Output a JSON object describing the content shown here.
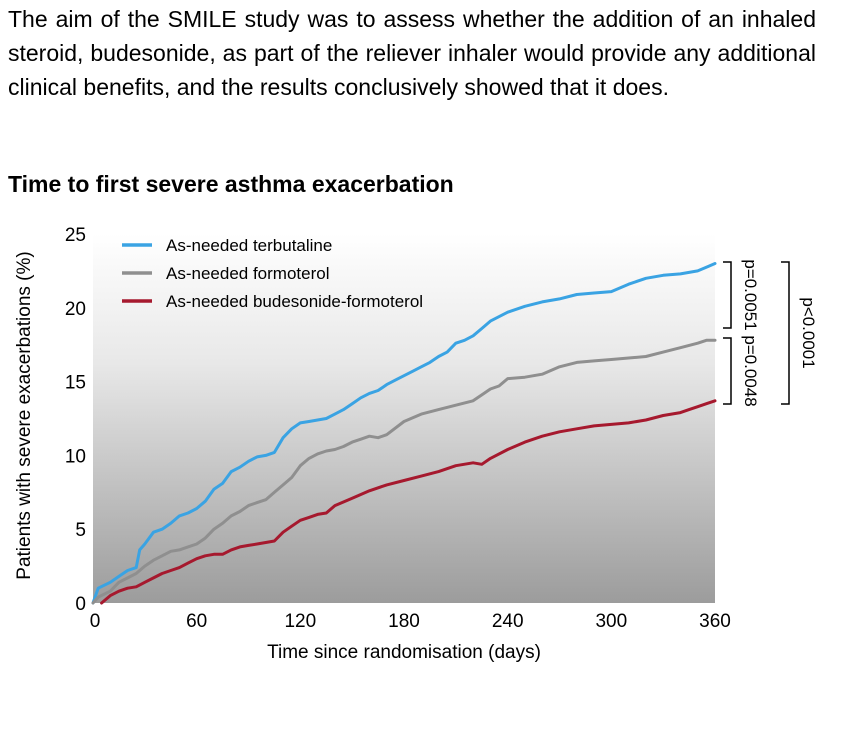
{
  "intro_text": "The aim of the SMILE study was to assess whether the addition of an inhaled steroid, budesonide, as part of the reliever inhaler would provide any additional clinical benefits, and the results conclusively showed that it does.",
  "chart_data": {
    "type": "line",
    "title": "Time to first severe asthma exacerbation",
    "xlabel": "Time since randomisation (days)",
    "ylabel": "Patients with severe exacerbations (%)",
    "xlim": [
      0,
      360
    ],
    "ylim": [
      0,
      25
    ],
    "xticks": [
      "0",
      "60",
      "120",
      "180",
      "240",
      "300",
      "360"
    ],
    "yticks": [
      "0",
      "5",
      "10",
      "15",
      "20",
      "25"
    ],
    "legend_position": "top-left",
    "series": [
      {
        "name": "As-needed terbutaline",
        "color": "#3aa3e3",
        "x": [
          0,
          3,
          10,
          15,
          20,
          25,
          27,
          30,
          35,
          40,
          45,
          50,
          55,
          60,
          65,
          70,
          75,
          80,
          85,
          90,
          95,
          100,
          105,
          110,
          115,
          120,
          125,
          130,
          135,
          140,
          145,
          150,
          155,
          160,
          165,
          170,
          175,
          180,
          185,
          190,
          195,
          200,
          205,
          210,
          215,
          220,
          225,
          230,
          240,
          250,
          260,
          270,
          280,
          290,
          300,
          310,
          320,
          330,
          340,
          350,
          356,
          360
        ],
        "y": [
          0,
          1.0,
          1.4,
          1.8,
          2.2,
          2.4,
          3.6,
          4.0,
          4.8,
          5.0,
          5.4,
          5.9,
          6.1,
          6.4,
          6.9,
          7.7,
          8.1,
          8.9,
          9.2,
          9.6,
          9.9,
          10.0,
          10.2,
          11.2,
          11.8,
          12.2,
          12.3,
          12.4,
          12.5,
          12.8,
          13.1,
          13.5,
          13.9,
          14.2,
          14.4,
          14.8,
          15.1,
          15.4,
          15.7,
          16.0,
          16.3,
          16.7,
          17.0,
          17.6,
          17.8,
          18.1,
          18.6,
          19.1,
          19.7,
          20.1,
          20.4,
          20.6,
          20.9,
          21.0,
          21.1,
          21.6,
          22.0,
          22.2,
          22.3,
          22.5,
          22.8,
          23.0
        ]
      },
      {
        "name": "As-needed formoterol",
        "color": "#8f8f8f",
        "x": [
          0,
          3,
          10,
          15,
          20,
          25,
          30,
          35,
          40,
          45,
          50,
          55,
          60,
          65,
          70,
          75,
          80,
          85,
          90,
          95,
          100,
          105,
          110,
          115,
          120,
          125,
          130,
          135,
          140,
          145,
          150,
          155,
          160,
          165,
          170,
          180,
          190,
          200,
          210,
          220,
          225,
          230,
          235,
          240,
          250,
          260,
          270,
          280,
          290,
          300,
          310,
          320,
          330,
          340,
          350,
          355,
          360
        ],
        "y": [
          0,
          0.4,
          0.8,
          1.4,
          1.7,
          2.0,
          2.5,
          2.9,
          3.2,
          3.5,
          3.6,
          3.8,
          4.0,
          4.4,
          5.0,
          5.4,
          5.9,
          6.2,
          6.6,
          6.8,
          7.0,
          7.5,
          8.0,
          8.5,
          9.3,
          9.8,
          10.1,
          10.3,
          10.4,
          10.6,
          10.9,
          11.1,
          11.3,
          11.2,
          11.4,
          12.3,
          12.8,
          13.1,
          13.4,
          13.7,
          14.1,
          14.5,
          14.7,
          15.2,
          15.3,
          15.5,
          16.0,
          16.3,
          16.4,
          16.5,
          16.6,
          16.7,
          17.0,
          17.3,
          17.6,
          17.8,
          17.8
        ]
      },
      {
        "name": "As-needed budesonide-formoterol",
        "color": "#a6192e",
        "x": [
          5,
          10,
          15,
          20,
          25,
          30,
          35,
          40,
          45,
          50,
          55,
          60,
          65,
          70,
          75,
          80,
          85,
          90,
          95,
          100,
          105,
          110,
          115,
          120,
          125,
          130,
          135,
          140,
          150,
          160,
          170,
          180,
          190,
          200,
          210,
          220,
          225,
          230,
          240,
          250,
          260,
          270,
          280,
          290,
          300,
          310,
          320,
          330,
          340,
          345,
          350,
          355,
          360
        ],
        "y": [
          0,
          0.5,
          0.8,
          1.0,
          1.1,
          1.4,
          1.7,
          2.0,
          2.2,
          2.4,
          2.7,
          3.0,
          3.2,
          3.3,
          3.3,
          3.6,
          3.8,
          3.9,
          4.0,
          4.1,
          4.2,
          4.8,
          5.2,
          5.6,
          5.8,
          6.0,
          6.1,
          6.6,
          7.1,
          7.6,
          8.0,
          8.3,
          8.6,
          8.9,
          9.3,
          9.5,
          9.4,
          9.8,
          10.4,
          10.9,
          11.3,
          11.6,
          11.8,
          12.0,
          12.1,
          12.2,
          12.4,
          12.7,
          12.9,
          13.1,
          13.3,
          13.5,
          13.7
        ]
      }
    ],
    "annotations": [
      "p=0.0051",
      "p=0.0048",
      "p<0.0001"
    ]
  }
}
